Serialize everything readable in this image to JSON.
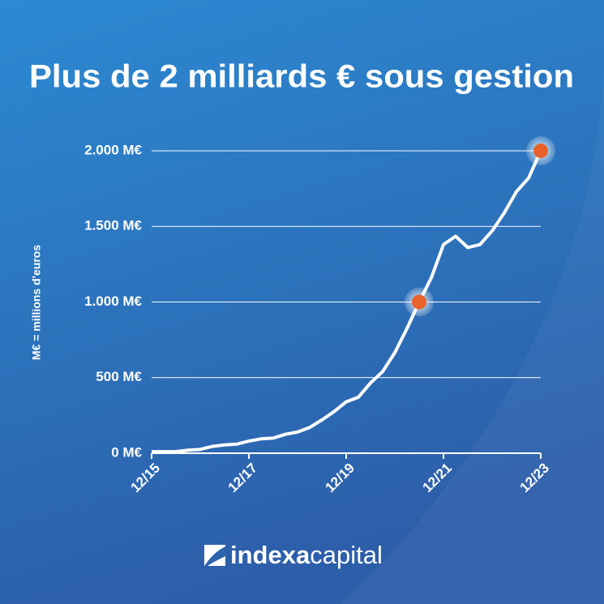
{
  "chart_data": {
    "type": "line",
    "title": "Plus de 2 milliards € sous gestion",
    "ylabel": "M€ = millions d'euros",
    "x": [
      "12/15",
      "03/16",
      "06/16",
      "09/16",
      "12/16",
      "03/17",
      "06/17",
      "09/17",
      "12/17",
      "03/18",
      "06/18",
      "09/18",
      "12/18",
      "03/19",
      "06/19",
      "09/19",
      "12/19",
      "03/20",
      "06/20",
      "09/20",
      "12/20",
      "03/21",
      "06/21",
      "09/21",
      "12/21",
      "03/22",
      "06/22",
      "09/22",
      "12/22",
      "03/23",
      "06/23",
      "09/23",
      "12/23"
    ],
    "series": [
      {
        "color": "#ffffff",
        "values": [
          10,
          10,
          10,
          20,
          25,
          45,
          55,
          60,
          80,
          95,
          100,
          125,
          140,
          170,
          220,
          275,
          340,
          370,
          465,
          540,
          665,
          825,
          1000,
          1160,
          1380,
          1435,
          1360,
          1380,
          1470,
          1590,
          1730,
          1820,
          2000
        ]
      }
    ],
    "xlim": [
      "12/15",
      "12/23"
    ],
    "xticks": [
      "12/15",
      "12/17",
      "12/19",
      "12/21",
      "12/23"
    ],
    "ylim": [
      0,
      2000
    ],
    "yticks": [
      {
        "value": 0,
        "label": "0 M€"
      },
      {
        "value": 500,
        "label": "500 M€"
      },
      {
        "value": 1000,
        "label": "1.000 M€"
      },
      {
        "value": 1500,
        "label": "1.500 M€"
      },
      {
        "value": 2000,
        "label": "2.000 M€"
      }
    ],
    "grid": true,
    "highlight_x": [
      "06/21",
      "12/23"
    ],
    "highlight_color": "#e8632b"
  },
  "logo": {
    "bold": "indexa",
    "light": "capital"
  }
}
